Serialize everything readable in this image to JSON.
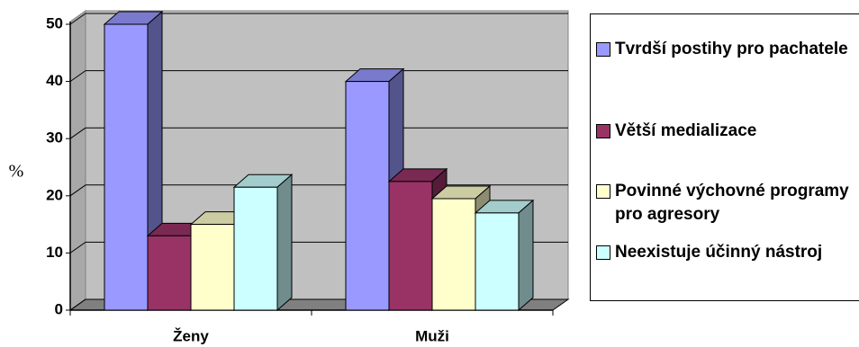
{
  "chart_data": {
    "type": "bar3d",
    "y_label": "%",
    "categories": [
      "Ženy",
      "Muži"
    ],
    "series": [
      {
        "name": "Tvrdší postihy pro pachatele",
        "color": "#9999ff",
        "values": [
          50,
          40
        ]
      },
      {
        "name": "Větší medializace",
        "color": "#993366",
        "values": [
          13,
          22.5
        ]
      },
      {
        "name": "Povinné výchovné programy pro agresory",
        "color": "#ffffcc",
        "values": [
          15,
          19.5
        ]
      },
      {
        "name": "Neexistuje účinný nástroj",
        "color": "#ccffff",
        "values": [
          21.5,
          17
        ]
      }
    ],
    "ylim": [
      0,
      50
    ],
    "yticks": [
      0,
      10,
      20,
      30,
      40,
      50
    ],
    "grid": true,
    "legend": "right"
  }
}
